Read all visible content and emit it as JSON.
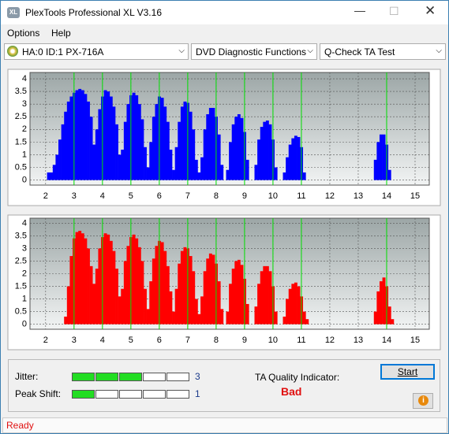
{
  "window": {
    "title": "PlexTools Professional XL V3.16"
  },
  "menu": [
    "Options",
    "Help"
  ],
  "toolbar": {
    "drive": "HA:0 ID:1  PX-716A",
    "function": "DVD Diagnostic Functions",
    "test": "Q-Check TA Test"
  },
  "chart_data": [
    {
      "type": "bar",
      "color": "#0000ff",
      "x": [
        2.1,
        2.2,
        2.3,
        2.4,
        2.5,
        2.6,
        2.7,
        2.8,
        2.9,
        3.0,
        3.1,
        3.2,
        3.3,
        3.4,
        3.5,
        3.6,
        3.7,
        3.8,
        3.9,
        4.0,
        4.1,
        4.2,
        4.3,
        4.4,
        4.5,
        4.6,
        4.7,
        4.8,
        4.9,
        5.0,
        5.1,
        5.2,
        5.3,
        5.4,
        5.5,
        5.6,
        5.7,
        5.8,
        5.9,
        6.0,
        6.1,
        6.2,
        6.3,
        6.4,
        6.5,
        6.6,
        6.7,
        6.8,
        6.9,
        7.0,
        7.1,
        7.2,
        7.3,
        7.4,
        7.5,
        7.6,
        7.7,
        7.8,
        7.9,
        8.0,
        8.1,
        8.2,
        8.4,
        8.5,
        8.6,
        8.7,
        8.8,
        8.9,
        9.0,
        9.1,
        9.4,
        9.5,
        9.6,
        9.7,
        9.8,
        9.9,
        10.0,
        10.1,
        10.4,
        10.5,
        10.6,
        10.7,
        10.8,
        10.9,
        11.0,
        11.1,
        13.6,
        13.7,
        13.8,
        13.9,
        14.0,
        14.1
      ],
      "values": [
        0.3,
        0.3,
        0.6,
        1.0,
        1.6,
        2.2,
        2.7,
        3.1,
        3.3,
        3.45,
        3.55,
        3.6,
        3.55,
        3.4,
        3.1,
        2.5,
        1.4,
        2.0,
        2.8,
        3.3,
        3.55,
        3.5,
        3.3,
        2.9,
        2.2,
        1.0,
        1.2,
        2.3,
        3.0,
        3.35,
        3.45,
        3.35,
        3.0,
        2.4,
        1.3,
        0.5,
        1.5,
        2.5,
        3.0,
        3.3,
        3.25,
        2.9,
        2.3,
        1.2,
        0.4,
        1.3,
        2.3,
        2.9,
        3.1,
        3.05,
        2.7,
        2.0,
        0.8,
        0.3,
        0.9,
        2.0,
        2.6,
        2.85,
        2.85,
        2.5,
        1.8,
        0.6,
        0.4,
        1.5,
        2.2,
        2.5,
        2.6,
        2.45,
        1.9,
        0.8,
        0.6,
        1.6,
        2.1,
        2.3,
        2.35,
        2.2,
        1.6,
        0.5,
        0.3,
        0.9,
        1.4,
        1.65,
        1.75,
        1.7,
        1.3,
        0.3,
        0.8,
        1.5,
        1.8,
        1.8,
        1.4,
        0.4
      ],
      "xlim": [
        1.45,
        15.5
      ],
      "ylim": [
        -0.2,
        4.25
      ],
      "xticks": [
        2,
        3,
        4,
        5,
        6,
        7,
        8,
        9,
        10,
        11,
        12,
        13,
        14,
        15
      ],
      "yticks": [
        0,
        0.5,
        1,
        1.5,
        2,
        2.5,
        3,
        3.5,
        4
      ],
      "grid": true,
      "marker_lines": [
        3,
        4,
        5,
        6,
        7,
        8,
        9,
        10,
        11,
        14
      ],
      "marker_color": "#00e000"
    },
    {
      "type": "bar",
      "color": "#ff0000",
      "x": [
        2.7,
        2.8,
        2.9,
        3.0,
        3.1,
        3.2,
        3.3,
        3.4,
        3.5,
        3.6,
        3.7,
        3.8,
        3.9,
        4.0,
        4.1,
        4.2,
        4.3,
        4.4,
        4.5,
        4.6,
        4.7,
        4.8,
        4.9,
        5.0,
        5.1,
        5.2,
        5.3,
        5.4,
        5.5,
        5.6,
        5.7,
        5.8,
        5.9,
        6.0,
        6.1,
        6.2,
        6.3,
        6.4,
        6.5,
        6.6,
        6.7,
        6.8,
        6.9,
        7.0,
        7.1,
        7.2,
        7.3,
        7.4,
        7.5,
        7.6,
        7.7,
        7.8,
        7.9,
        8.0,
        8.1,
        8.2,
        8.4,
        8.5,
        8.6,
        8.7,
        8.8,
        8.9,
        9.0,
        9.1,
        9.4,
        9.5,
        9.6,
        9.7,
        9.8,
        9.9,
        10.0,
        10.1,
        10.4,
        10.5,
        10.6,
        10.7,
        10.8,
        10.9,
        11.0,
        11.1,
        11.2,
        13.6,
        13.7,
        13.8,
        13.9,
        14.0,
        14.1,
        14.2
      ],
      "values": [
        0.3,
        1.5,
        2.7,
        3.4,
        3.65,
        3.7,
        3.6,
        3.4,
        3.0,
        2.3,
        1.6,
        2.2,
        3.0,
        3.45,
        3.6,
        3.55,
        3.3,
        2.9,
        2.2,
        1.1,
        1.4,
        2.5,
        3.1,
        3.45,
        3.55,
        3.4,
        3.05,
        2.5,
        1.4,
        0.6,
        1.7,
        2.6,
        3.1,
        3.3,
        3.25,
        2.9,
        2.3,
        1.3,
        0.5,
        1.4,
        2.4,
        2.9,
        3.05,
        3.0,
        2.7,
        2.1,
        1.0,
        0.4,
        1.1,
        2.1,
        2.6,
        2.8,
        2.75,
        2.4,
        1.7,
        0.6,
        0.5,
        1.6,
        2.2,
        2.5,
        2.55,
        2.35,
        1.8,
        0.8,
        0.7,
        1.6,
        2.1,
        2.3,
        2.3,
        2.1,
        1.5,
        0.5,
        0.3,
        1.0,
        1.4,
        1.6,
        1.65,
        1.5,
        1.1,
        0.5,
        0.2,
        0.5,
        1.3,
        1.7,
        1.85,
        1.5,
        0.7,
        0.2
      ],
      "xlim": [
        1.45,
        15.5
      ],
      "ylim": [
        -0.2,
        4.2
      ],
      "xticks": [
        2,
        3,
        4,
        5,
        6,
        7,
        8,
        9,
        10,
        11,
        12,
        13,
        14,
        15
      ],
      "yticks": [
        0,
        0.5,
        1,
        1.5,
        2,
        2.5,
        3,
        3.5,
        4
      ],
      "grid": true,
      "marker_lines": [
        3,
        4,
        5,
        6,
        7,
        8,
        9,
        10,
        11,
        14
      ],
      "marker_color": "#00e000"
    }
  ],
  "results": {
    "jitter": {
      "label": "Jitter:",
      "value": 3
    },
    "peak_shift": {
      "label": "Peak Shift:",
      "value": 1
    },
    "ta_quality": {
      "label": "TA Quality Indicator:",
      "value": "Bad"
    }
  },
  "buttons": {
    "start": "Start"
  },
  "status": "Ready"
}
